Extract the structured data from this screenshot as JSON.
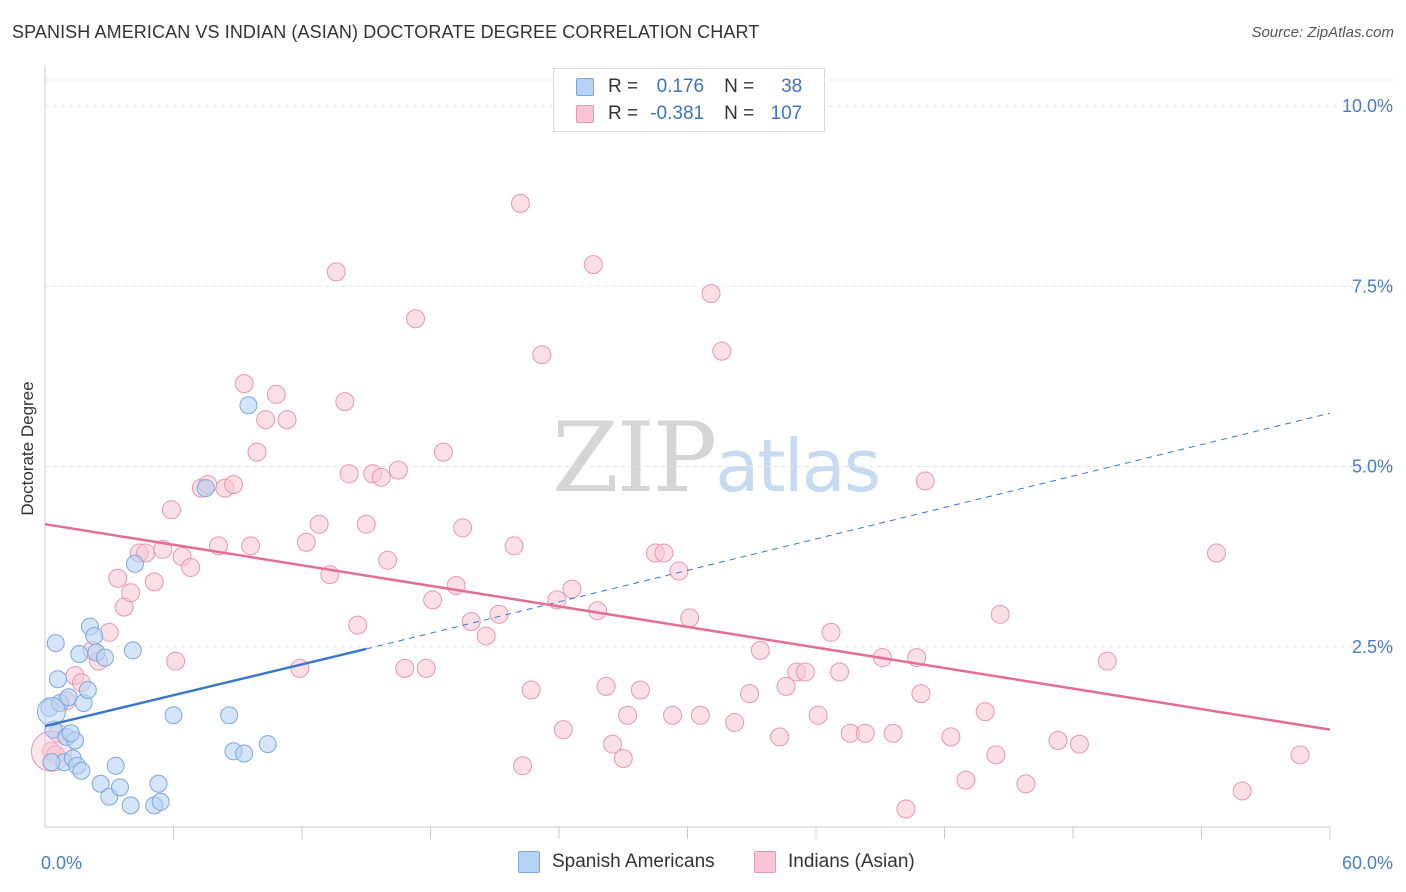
{
  "title": "SPANISH AMERICAN VS INDIAN (ASIAN) DOCTORATE DEGREE CORRELATION CHART",
  "source": "Source: ZipAtlas.com",
  "watermark": {
    "zip": "ZIP",
    "atlas": "atlas"
  },
  "legend": {
    "r_label": "R =",
    "n_label": "N =",
    "rows": [
      {
        "r": "0.176",
        "n": "38"
      },
      {
        "r": "-0.381",
        "n": "107"
      }
    ]
  },
  "colors": {
    "blue_fill": "#b7d3f3",
    "blue_stroke": "#7ea8dd",
    "blue_line": "#3a77cc",
    "pink_fill": "#f8c5d4",
    "pink_stroke": "#ea97b1",
    "pink_line": "#e46d97",
    "tick_label": "#4a7cc7"
  },
  "chart_data": {
    "type": "scatter",
    "xlabel": "",
    "ylabel": "Doctorate Degree",
    "xlim": [
      0,
      60
    ],
    "ylim": [
      0,
      10.5
    ],
    "x_tick_labels": [
      {
        "value": 0,
        "label": "0.0%"
      },
      {
        "value": 60,
        "label": "60.0%"
      }
    ],
    "y_tick_labels": [
      {
        "value": 2.5,
        "label": "2.5%"
      },
      {
        "value": 5.0,
        "label": "5.0%"
      },
      {
        "value": 7.5,
        "label": "7.5%"
      },
      {
        "value": 10.0,
        "label": "10.0%"
      }
    ],
    "x_minor_ticks": [
      6,
      12,
      18,
      24,
      30,
      36,
      42,
      48,
      54,
      60
    ],
    "grid": true,
    "legend_position": "bottom-center",
    "series": [
      {
        "name": "Spanish Americans",
        "color": "#b7d3f3",
        "trend": {
          "x": [
            0,
            15
          ],
          "y": [
            1.4,
            2.47
          ],
          "dashed_extension_to": [
            60,
            5.74
          ]
        },
        "points": [
          [
            0.2,
            1.65
          ],
          [
            0.4,
            1.35
          ],
          [
            0.5,
            2.55
          ],
          [
            0.6,
            2.05
          ],
          [
            0.7,
            1.72
          ],
          [
            0.9,
            0.9
          ],
          [
            1.0,
            1.25
          ],
          [
            1.1,
            1.8
          ],
          [
            1.3,
            0.95
          ],
          [
            1.4,
            1.2
          ],
          [
            1.5,
            0.85
          ],
          [
            1.6,
            2.4
          ],
          [
            1.7,
            0.78
          ],
          [
            1.8,
            1.72
          ],
          [
            2.0,
            1.9
          ],
          [
            2.1,
            2.78
          ],
          [
            2.3,
            2.65
          ],
          [
            2.4,
            2.42
          ],
          [
            2.6,
            0.6
          ],
          [
            2.8,
            2.35
          ],
          [
            3.0,
            0.42
          ],
          [
            3.3,
            0.85
          ],
          [
            3.5,
            0.55
          ],
          [
            4.0,
            0.3
          ],
          [
            4.1,
            2.45
          ],
          [
            4.2,
            3.65
          ],
          [
            5.1,
            0.3
          ],
          [
            5.3,
            0.6
          ],
          [
            5.4,
            0.35
          ],
          [
            6.0,
            1.55
          ],
          [
            7.5,
            4.7
          ],
          [
            8.6,
            1.55
          ],
          [
            8.8,
            1.05
          ],
          [
            9.3,
            1.02
          ],
          [
            9.5,
            5.85
          ],
          [
            10.4,
            1.15
          ],
          [
            0.3,
            0.9
          ],
          [
            1.2,
            1.3
          ]
        ]
      },
      {
        "name": "Indians (Asian)",
        "color": "#f8c5d4",
        "trend": {
          "x": [
            0,
            60
          ],
          "y": [
            4.2,
            1.35
          ]
        },
        "points": [
          [
            0.3,
            1.05
          ],
          [
            0.6,
            1.3
          ],
          [
            1.0,
            1.75
          ],
          [
            1.4,
            2.1
          ],
          [
            1.7,
            2.0
          ],
          [
            2.2,
            2.45
          ],
          [
            2.5,
            2.3
          ],
          [
            3.0,
            2.7
          ],
          [
            3.4,
            3.45
          ],
          [
            3.7,
            3.05
          ],
          [
            4.0,
            3.25
          ],
          [
            4.4,
            3.8
          ],
          [
            4.7,
            3.8
          ],
          [
            5.1,
            3.4
          ],
          [
            5.5,
            3.85
          ],
          [
            5.9,
            4.4
          ],
          [
            6.1,
            2.3
          ],
          [
            6.4,
            3.75
          ],
          [
            6.8,
            3.6
          ],
          [
            7.3,
            4.7
          ],
          [
            7.6,
            4.75
          ],
          [
            8.1,
            3.9
          ],
          [
            8.4,
            4.7
          ],
          [
            8.8,
            4.75
          ],
          [
            9.3,
            6.15
          ],
          [
            9.6,
            3.9
          ],
          [
            9.9,
            5.2
          ],
          [
            10.3,
            5.65
          ],
          [
            10.8,
            6.0
          ],
          [
            11.3,
            5.65
          ],
          [
            11.9,
            2.2
          ],
          [
            12.2,
            3.95
          ],
          [
            12.8,
            4.2
          ],
          [
            13.3,
            3.5
          ],
          [
            13.6,
            7.7
          ],
          [
            14.0,
            5.9
          ],
          [
            14.2,
            4.9
          ],
          [
            14.6,
            2.8
          ],
          [
            15.0,
            4.2
          ],
          [
            15.3,
            4.9
          ],
          [
            15.7,
            4.85
          ],
          [
            16.0,
            3.7
          ],
          [
            16.5,
            4.95
          ],
          [
            16.8,
            2.2
          ],
          [
            17.3,
            7.05
          ],
          [
            17.8,
            2.2
          ],
          [
            18.1,
            3.15
          ],
          [
            18.6,
            5.2
          ],
          [
            19.2,
            3.35
          ],
          [
            19.5,
            4.15
          ],
          [
            19.9,
            2.85
          ],
          [
            20.6,
            2.65
          ],
          [
            21.2,
            2.95
          ],
          [
            21.9,
            3.9
          ],
          [
            22.2,
            8.65
          ],
          [
            22.3,
            0.85
          ],
          [
            22.7,
            1.9
          ],
          [
            23.2,
            6.55
          ],
          [
            23.9,
            3.15
          ],
          [
            24.2,
            1.35
          ],
          [
            24.6,
            3.3
          ],
          [
            25.6,
            7.8
          ],
          [
            25.8,
            3.0
          ],
          [
            26.2,
            1.95
          ],
          [
            26.5,
            1.15
          ],
          [
            27.0,
            0.95
          ],
          [
            27.2,
            1.55
          ],
          [
            27.8,
            1.9
          ],
          [
            28.5,
            3.8
          ],
          [
            28.9,
            3.8
          ],
          [
            29.3,
            1.55
          ],
          [
            29.6,
            3.55
          ],
          [
            30.1,
            2.9
          ],
          [
            30.6,
            1.55
          ],
          [
            31.1,
            7.4
          ],
          [
            31.6,
            6.6
          ],
          [
            32.2,
            1.45
          ],
          [
            32.9,
            1.85
          ],
          [
            33.4,
            2.45
          ],
          [
            34.3,
            1.25
          ],
          [
            34.6,
            1.95
          ],
          [
            35.1,
            2.15
          ],
          [
            35.5,
            2.15
          ],
          [
            36.1,
            1.55
          ],
          [
            36.7,
            2.7
          ],
          [
            37.1,
            2.15
          ],
          [
            37.6,
            1.3
          ],
          [
            38.3,
            1.3
          ],
          [
            39.1,
            2.35
          ],
          [
            39.6,
            1.3
          ],
          [
            40.2,
            0.25
          ],
          [
            40.7,
            2.35
          ],
          [
            40.9,
            1.85
          ],
          [
            41.1,
            4.8
          ],
          [
            42.3,
            1.25
          ],
          [
            43.0,
            0.65
          ],
          [
            43.9,
            1.6
          ],
          [
            44.4,
            1.0
          ],
          [
            44.6,
            2.95
          ],
          [
            45.8,
            0.6
          ],
          [
            47.3,
            1.2
          ],
          [
            48.3,
            1.15
          ],
          [
            49.6,
            2.3
          ],
          [
            54.7,
            3.8
          ],
          [
            55.9,
            0.5
          ],
          [
            58.6,
            1.0
          ],
          [
            0.5,
            1.0
          ]
        ]
      }
    ]
  }
}
